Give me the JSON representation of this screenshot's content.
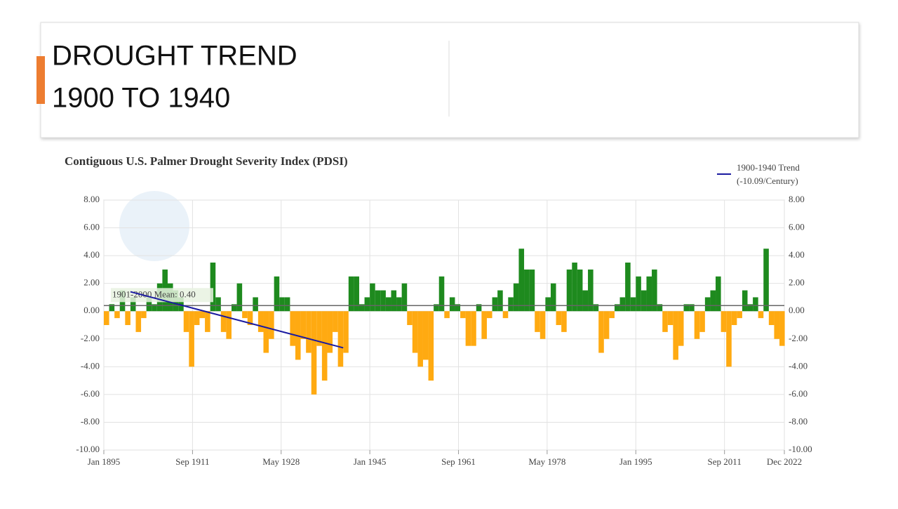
{
  "header": {
    "title_lines": [
      "DROUGHT TREND",
      "1900 TO 1940"
    ]
  },
  "chart_data": {
    "type": "bar",
    "title": "Contiguous U.S. Palmer Drought Severity Index (PDSI)",
    "x": [
      1895,
      1896,
      1897,
      1898,
      1899,
      1900,
      1901,
      1902,
      1903,
      1904,
      1905,
      1906,
      1907,
      1908,
      1909,
      1910,
      1911,
      1912,
      1913,
      1914,
      1915,
      1916,
      1917,
      1918,
      1919,
      1920,
      1921,
      1922,
      1923,
      1924,
      1925,
      1926,
      1927,
      1928,
      1929,
      1930,
      1931,
      1932,
      1933,
      1934,
      1935,
      1936,
      1937,
      1938,
      1939,
      1940,
      1941,
      1942,
      1943,
      1944,
      1945,
      1946,
      1947,
      1948,
      1949,
      1950,
      1951,
      1952,
      1953,
      1954,
      1955,
      1956,
      1957,
      1958,
      1959,
      1960,
      1961,
      1962,
      1963,
      1964,
      1965,
      1966,
      1967,
      1968,
      1969,
      1970,
      1971,
      1972,
      1973,
      1974,
      1975,
      1976,
      1977,
      1978,
      1979,
      1980,
      1981,
      1982,
      1983,
      1984,
      1985,
      1986,
      1987,
      1988,
      1989,
      1990,
      1991,
      1992,
      1993,
      1994,
      1995,
      1996,
      1997,
      1998,
      1999,
      2000,
      2001,
      2002,
      2003,
      2004,
      2005,
      2006,
      2007,
      2008,
      2009,
      2010,
      2011,
      2012,
      2013,
      2014,
      2015,
      2016,
      2017,
      2018,
      2019,
      2020,
      2021,
      2022
    ],
    "values": [
      -1,
      0.5,
      -0.5,
      1.5,
      -1,
      1,
      -1.5,
      -0.5,
      1,
      0.5,
      2,
      3,
      2,
      1.5,
      1,
      -1.5,
      -4,
      -1,
      -0.5,
      -1.5,
      3.5,
      1,
      -1.5,
      -2,
      0.5,
      2,
      -0.5,
      -1,
      1,
      -1.5,
      -3,
      -2,
      2.5,
      1,
      1,
      -2.5,
      -3.5,
      -2,
      -3,
      -6,
      -2.5,
      -5,
      -3,
      -1.5,
      -4,
      -3,
      2.5,
      2.5,
      0.5,
      1,
      2,
      1.5,
      1.5,
      1,
      1.5,
      1,
      2,
      -1,
      -3,
      -4,
      -3.5,
      -5,
      0.5,
      2.5,
      -0.5,
      1,
      0.5,
      -0.5,
      -2.5,
      -2.5,
      0.5,
      -2,
      -0.5,
      1,
      1.5,
      -0.5,
      1,
      2,
      4.5,
      3,
      3,
      -1.5,
      -2,
      1,
      2,
      -1,
      -1.5,
      3,
      3.5,
      3,
      1.5,
      3,
      0.5,
      -3,
      -2,
      -0.5,
      0.5,
      1,
      3.5,
      1,
      2.5,
      1.5,
      2.5,
      3,
      0.5,
      -1.5,
      -1,
      -3.5,
      -2.5,
      0.5,
      0.5,
      -2,
      -1.5,
      1,
      1.5,
      2.5,
      -1.5,
      -4,
      -1,
      -0.5,
      1.5,
      0.5,
      1,
      -0.5,
      4.5,
      -1,
      -2,
      -2.5
    ],
    "colors": {
      "positive": "#1e8a1e",
      "negative": "#ffaa11"
    },
    "xlim": [
      1895,
      2022.92
    ],
    "xticks": [
      {
        "value": 1895,
        "label": "Jan 1895"
      },
      {
        "value": 1911.67,
        "label": "Sep 1911"
      },
      {
        "value": 1928.33,
        "label": "May 1928"
      },
      {
        "value": 1945,
        "label": "Jan 1945"
      },
      {
        "value": 1961.67,
        "label": "Sep 1961"
      },
      {
        "value": 1978.33,
        "label": "May 1978"
      },
      {
        "value": 1995,
        "label": "Jan 1995"
      },
      {
        "value": 2011.67,
        "label": "Sep 2011"
      },
      {
        "value": 2022.92,
        "label": "Dec 2022"
      }
    ],
    "ylim": [
      -10,
      8
    ],
    "yticks": [
      {
        "value": 8,
        "label": "8.00"
      },
      {
        "value": 6,
        "label": "6.00"
      },
      {
        "value": 4,
        "label": "4.00"
      },
      {
        "value": 2,
        "label": "2.00"
      },
      {
        "value": 0,
        "label": "0.00"
      },
      {
        "value": -2,
        "label": "-2.00"
      },
      {
        "value": -4,
        "label": "-4.00"
      },
      {
        "value": -6,
        "label": "-6.00"
      },
      {
        "value": -8,
        "label": "-8.00"
      },
      {
        "value": -10,
        "label": "-10.00"
      }
    ],
    "grid": true,
    "mean": {
      "label": "1901-2000 Mean: 0.40",
      "value": 0.4
    },
    "trend": {
      "name": "1900-1940 Trend",
      "rate": "(-10.09/Century)",
      "color": "#1a1aa0",
      "x": [
        1900,
        1940
      ],
      "values": [
        1.4,
        -2.64
      ]
    },
    "legend": "top-right"
  }
}
